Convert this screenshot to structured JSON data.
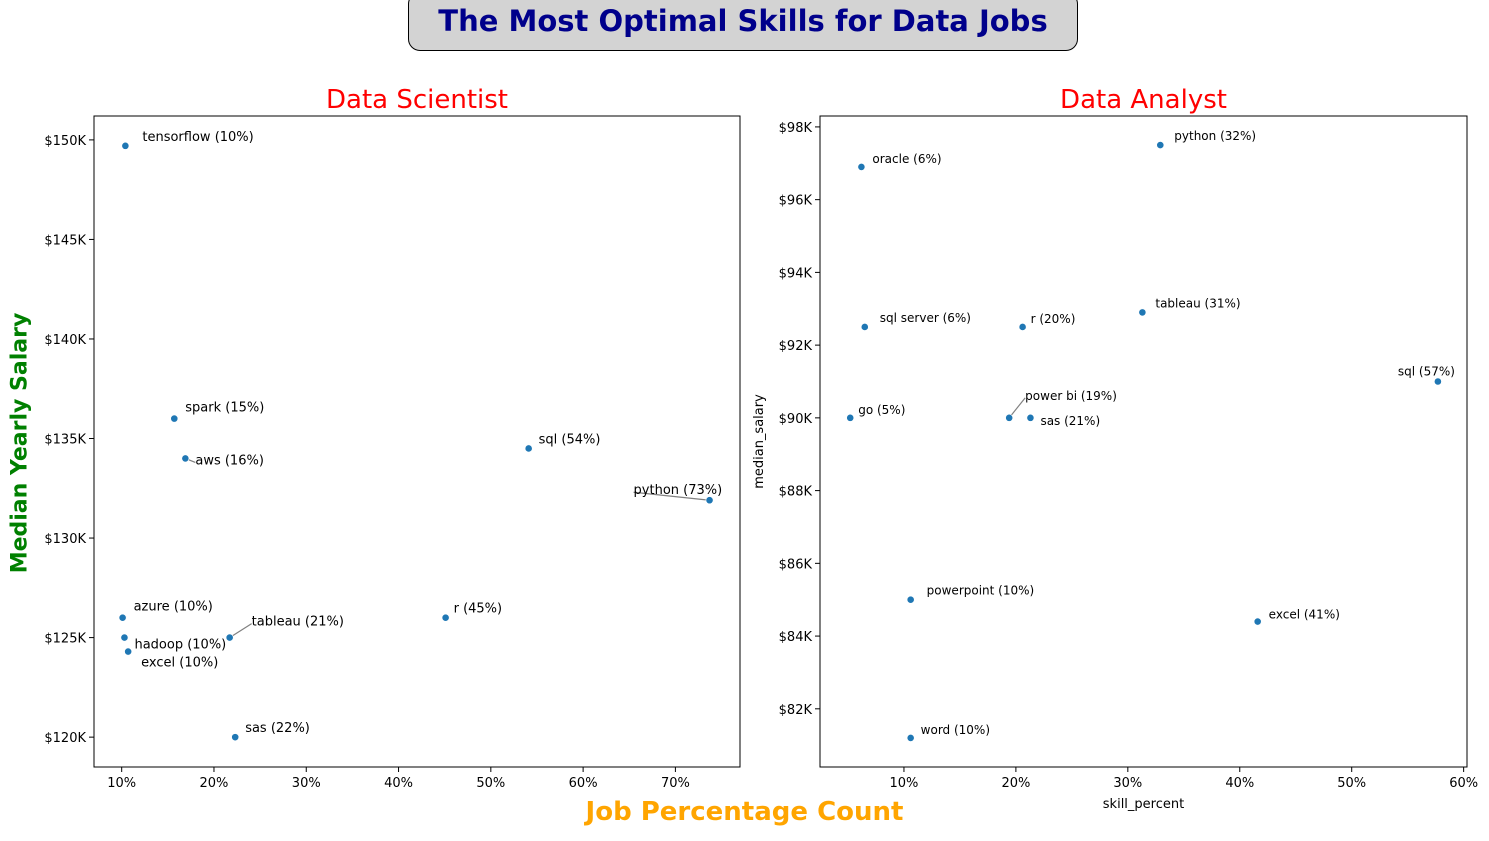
{
  "figure": {
    "suptitle": "The Most Optimal Skills for Data Jobs",
    "sup_xlabel": "Job Percentage Count",
    "sup_ylabel": "Median Yearly Salary",
    "colors": {
      "suptitle": "#00008b",
      "suptitle_box": "#d3d3d3",
      "sup_xlabel": "#ffa500",
      "sup_ylabel": "#008000",
      "subplot_title": "#ff0000",
      "points": "#1f77b4"
    }
  },
  "chart_data": [
    {
      "type": "scatter",
      "title": "Data Scientist",
      "xlabel": "",
      "ylabel": "",
      "xlim": [
        7,
        77
      ],
      "ylim": [
        118500,
        151200
      ],
      "x_ticks": [
        10,
        20,
        30,
        40,
        50,
        60,
        70
      ],
      "x_tick_labels": [
        "10%",
        "20%",
        "30%",
        "40%",
        "50%",
        "60%",
        "70%"
      ],
      "y_ticks": [
        120000,
        125000,
        130000,
        135000,
        140000,
        145000,
        150000
      ],
      "y_tick_labels": [
        "$120K",
        "$125K",
        "$130K",
        "$135K",
        "$140K",
        "$145K",
        "$150K"
      ],
      "grid": false,
      "points": [
        {
          "label": "tensorflow (10%)",
          "x": 10.4,
          "y": 149700
        },
        {
          "label": "spark (15%)",
          "x": 15.7,
          "y": 136000
        },
        {
          "label": "aws (16%)",
          "x": 16.9,
          "y": 134000
        },
        {
          "label": "sql (54%)",
          "x": 54.1,
          "y": 134500
        },
        {
          "label": "python (73%)",
          "x": 73.7,
          "y": 131900
        },
        {
          "label": "azure (10%)",
          "x": 10.1,
          "y": 126000
        },
        {
          "label": "hadoop (10%)",
          "x": 10.3,
          "y": 125000
        },
        {
          "label": "excel (10%)",
          "x": 10.7,
          "y": 124300
        },
        {
          "label": "tableau (21%)",
          "x": 21.7,
          "y": 125000
        },
        {
          "label": "r (45%)",
          "x": 45.1,
          "y": 126000
        },
        {
          "label": "sas (22%)",
          "x": 22.3,
          "y": 120000
        }
      ]
    },
    {
      "type": "scatter",
      "title": "Data Analyst",
      "xlabel": "skill_percent",
      "ylabel": "median_salary",
      "xlim": [
        2.5,
        60.3
      ],
      "ylim": [
        80400,
        98300
      ],
      "x_ticks": [
        10,
        20,
        30,
        40,
        50,
        60
      ],
      "x_tick_labels": [
        "10%",
        "20%",
        "30%",
        "40%",
        "50%",
        "60%"
      ],
      "y_ticks": [
        82000,
        84000,
        86000,
        88000,
        90000,
        92000,
        94000,
        96000,
        98000
      ],
      "y_tick_labels": [
        "$82K",
        "$84K",
        "$86K",
        "$88K",
        "$90K",
        "$92K",
        "$94K",
        "$96K",
        "$98K"
      ],
      "grid": false,
      "points": [
        {
          "label": "python (32%)",
          "x": 32.9,
          "y": 97500
        },
        {
          "label": "oracle (6%)",
          "x": 6.2,
          "y": 96900
        },
        {
          "label": "tableau (31%)",
          "x": 31.3,
          "y": 92900
        },
        {
          "label": "sql server (6%)",
          "x": 6.5,
          "y": 92500
        },
        {
          "label": "r (20%)",
          "x": 20.6,
          "y": 92500
        },
        {
          "label": "sql (57%)",
          "x": 57.7,
          "y": 91000
        },
        {
          "label": "power bi (19%)",
          "x": 19.4,
          "y": 90000
        },
        {
          "label": "go (5%)",
          "x": 5.2,
          "y": 90000
        },
        {
          "label": "sas (21%)",
          "x": 21.3,
          "y": 90000
        },
        {
          "label": "powerpoint (10%)",
          "x": 10.6,
          "y": 85000
        },
        {
          "label": "excel (41%)",
          "x": 41.6,
          "y": 84400
        },
        {
          "label": "word (10%)",
          "x": 10.6,
          "y": 81200
        }
      ]
    }
  ]
}
